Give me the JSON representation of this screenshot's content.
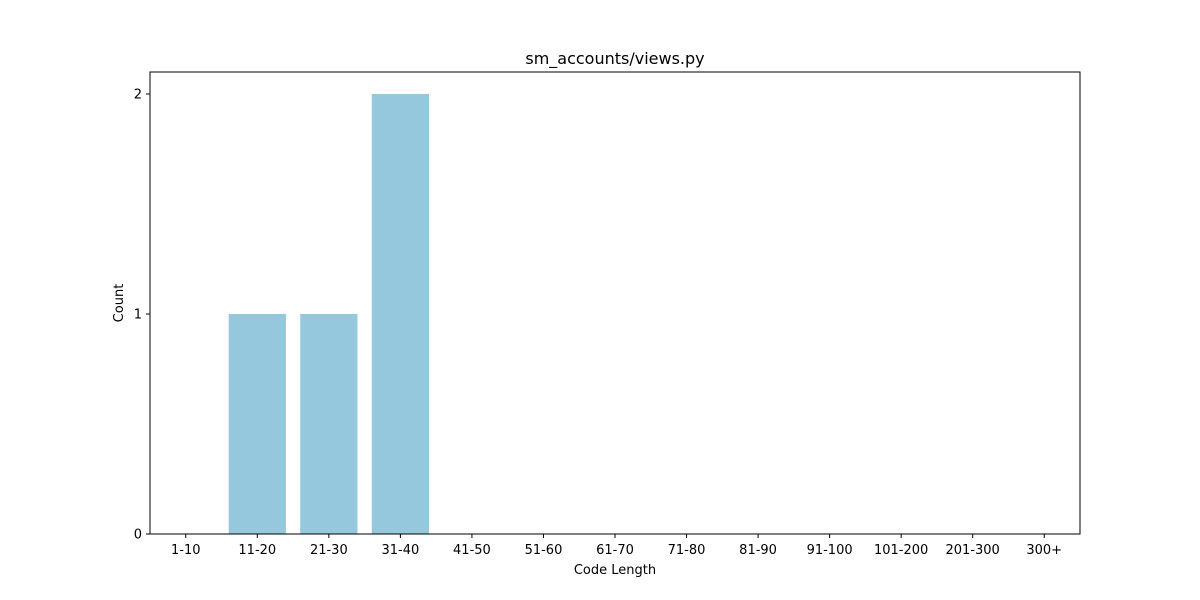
{
  "chart_data": {
    "type": "bar",
    "title": "sm_accounts/views.py",
    "xlabel": "Code Length",
    "ylabel": "Count",
    "categories": [
      "1-10",
      "11-20",
      "21-30",
      "31-40",
      "41-50",
      "51-60",
      "61-70",
      "71-80",
      "81-90",
      "91-100",
      "101-200",
      "201-300",
      "300+"
    ],
    "values": [
      0,
      1,
      1,
      2,
      0,
      0,
      0,
      0,
      0,
      0,
      0,
      0,
      0
    ],
    "yticks": [
      0,
      1,
      2
    ],
    "ylim": [
      0,
      2.1
    ],
    "bar_color": "#95c8dc",
    "grid": false,
    "legend": "none"
  }
}
